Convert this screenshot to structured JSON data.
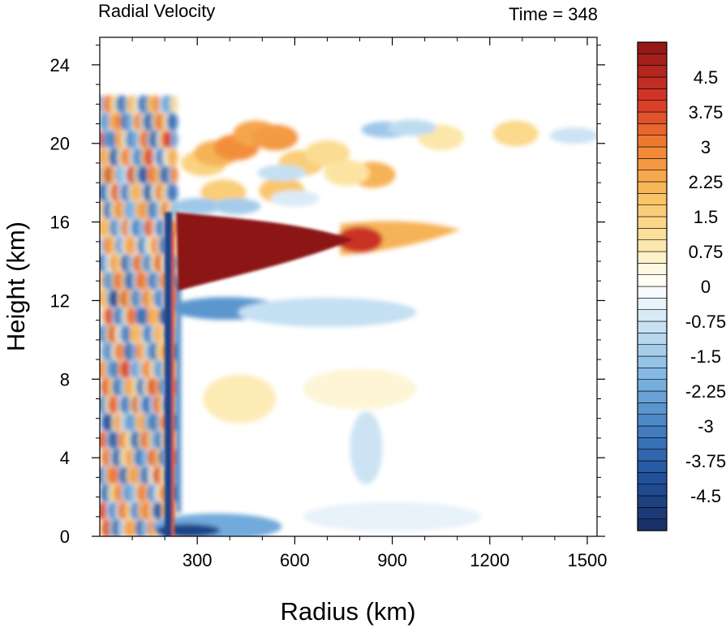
{
  "chart_data": {
    "type": "heatmap",
    "title": "Radial Velocity",
    "time_label": "Time = 348",
    "xlabel": "Radius (km)",
    "ylabel": "Height (km)",
    "xlim": [
      0,
      1530
    ],
    "ylim": [
      0,
      25.4
    ],
    "x_ticks": [
      "300",
      "600",
      "900",
      "1200",
      "1500"
    ],
    "x_tick_values": [
      300,
      600,
      900,
      1200,
      1500
    ],
    "y_ticks": [
      "0",
      "4",
      "8",
      "12",
      "16",
      "20",
      "24"
    ],
    "y_tick_values": [
      0,
      4,
      8,
      12,
      16,
      20,
      24
    ],
    "colorbar": {
      "range": [
        -5.25,
        5.25
      ],
      "interval": 0.25,
      "labels": [
        "4.5",
        "3.75",
        "3",
        "2.25",
        "1.5",
        "0.75",
        "0",
        "-0.75",
        "-1.5",
        "-2.25",
        "-3",
        "-3.75",
        "-4.5"
      ],
      "label_values": [
        4.5,
        3.75,
        3,
        2.25,
        1.5,
        0.75,
        0,
        -0.75,
        -1.5,
        -2.25,
        -3,
        -3.75,
        -4.5
      ]
    },
    "features": [
      {
        "name": "outflow-core",
        "x_range": [
          235,
          780
        ],
        "z_range": [
          12.5,
          16.5
        ],
        "value": 5.5
      },
      {
        "name": "outflow-extension",
        "x_range": [
          780,
          1100
        ],
        "z_center": 15.3,
        "value": 2.0
      },
      {
        "name": "inflow-below-outflow",
        "x_range": [
          230,
          560
        ],
        "z_center": 11.7,
        "value": -2.5
      },
      {
        "name": "eyewall-boundary-inflow",
        "x_range": [
          210,
          560
        ],
        "z_range": [
          0,
          1.5
        ],
        "value": -3.0
      },
      {
        "name": "upper-level-waves",
        "x_range": [
          0,
          1100
        ],
        "z_range": [
          17,
          21.5
        ],
        "value": 2.0
      }
    ]
  }
}
